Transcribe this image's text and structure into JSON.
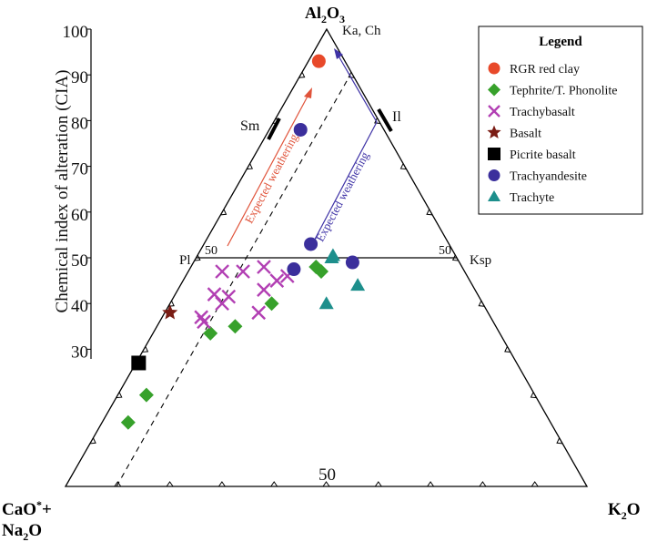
{
  "chart_data": {
    "type": "ternary-scatter",
    "apex_labels": {
      "top_main": "Al",
      "top_sub1": "2",
      "top_mid": "O",
      "top_sub2": "3",
      "left_line1_main": "CaO",
      "left_line1_sup": "*",
      "left_line1_tail": "+",
      "left_line2_main": "Na",
      "left_line2_sub": "2",
      "left_line2_tail": "O",
      "right_main": "K",
      "right_sub": "2",
      "right_tail": "O"
    },
    "ylabel": "Chemical index of alteration (CIA)",
    "cia_ticks": [
      100,
      90,
      80,
      70,
      60,
      50,
      40,
      30
    ],
    "mineral_labels": {
      "kaolinite_chlorite": "Ka, Ch",
      "illite": "Il",
      "smectite": "Sm",
      "plagioclase": "Pl",
      "ksp": "Ksp",
      "pl_side_50": "50",
      "ksp_side_50": "50",
      "base_50": "50"
    },
    "arrows": {
      "red_label": "Expected weathering",
      "blue_label": "Expected weathering",
      "red_color": "#e0533a",
      "blue_color": "#3f33a6"
    },
    "legend": {
      "title": "Legend",
      "entries": [
        {
          "label": "RGR red clay",
          "marker": "circle",
          "color": "#e8492a"
        },
        {
          "label": "Tephrite/T. Phonolite",
          "marker": "diamond",
          "color": "#37a12b"
        },
        {
          "label": "Trachybasalt",
          "marker": "x",
          "color": "#b23fb3"
        },
        {
          "label": "Basalt",
          "marker": "star",
          "color": "#7a1c14"
        },
        {
          "label": "Picrite basalt",
          "marker": "square",
          "color": "#000000"
        },
        {
          "label": "Trachyandesite",
          "marker": "circle",
          "color": "#3b2f9c"
        },
        {
          "label": "Trachyte",
          "marker": "triangle",
          "color": "#1d8f8c"
        }
      ]
    },
    "series": [
      {
        "name": "RGR red clay",
        "points": [
          {
            "cia": 93,
            "k2o": 2
          }
        ]
      },
      {
        "name": "Tephrite/T. Phonolite",
        "points": [
          {
            "cia": 48,
            "k2o": 24
          },
          {
            "cia": 47,
            "k2o": 25.5
          },
          {
            "cia": 40,
            "k2o": 19.5
          },
          {
            "cia": 35,
            "k2o": 15
          },
          {
            "cia": 33.5,
            "k2o": 11
          },
          {
            "cia": 20,
            "k2o": 5.5
          },
          {
            "cia": 14,
            "k2o": 5
          }
        ]
      },
      {
        "name": "Trachybasalt",
        "points": [
          {
            "cia": 48,
            "k2o": 14
          },
          {
            "cia": 47,
            "k2o": 10.5
          },
          {
            "cia": 47,
            "k2o": 6.5
          },
          {
            "cia": 46,
            "k2o": 19.5
          },
          {
            "cia": 45,
            "k2o": 18
          },
          {
            "cia": 43,
            "k2o": 16.5
          },
          {
            "cia": 42,
            "k2o": 7.5
          },
          {
            "cia": 41.5,
            "k2o": 10.5
          },
          {
            "cia": 40,
            "k2o": 10
          },
          {
            "cia": 38,
            "k2o": 18
          },
          {
            "cia": 37,
            "k2o": 7.5
          },
          {
            "cia": 36,
            "k2o": 8.5
          }
        ]
      },
      {
        "name": "Basalt",
        "points": [
          {
            "cia": 38,
            "k2o": 1
          }
        ]
      },
      {
        "name": "Picrite basalt",
        "points": [
          {
            "cia": 27,
            "k2o": 0.5
          }
        ]
      },
      {
        "name": "Trachyandesite",
        "points": [
          {
            "cia": 78,
            "k2o": 6
          },
          {
            "cia": 53,
            "k2o": 20.5
          },
          {
            "cia": 49,
            "k2o": 30.5
          },
          {
            "cia": 47.5,
            "k2o": 20
          }
        ]
      },
      {
        "name": "Trachyte",
        "points": [
          {
            "cia": 50.5,
            "k2o": 26
          },
          {
            "cia": 50,
            "k2o": 26
          },
          {
            "cia": 44,
            "k2o": 34
          },
          {
            "cia": 40,
            "k2o": 30
          }
        ]
      }
    ]
  }
}
